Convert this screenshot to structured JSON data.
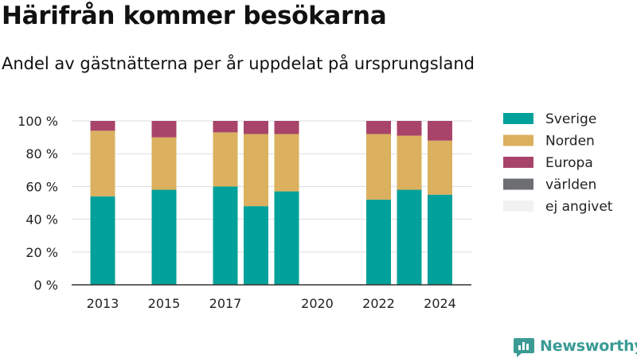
{
  "chart_data": {
    "type": "bar",
    "stacked": true,
    "title": "Härifrån kommer besökarna",
    "subtitle": "Andel av gästnätterna per år uppdelat på ursprungsland",
    "categories": [
      "2013",
      "2014",
      "2015",
      "2016",
      "2017",
      "2018",
      "2019",
      "2020",
      "2021",
      "2022",
      "2023",
      "2024"
    ],
    "tick_labels": [
      "2013",
      "2015",
      "2017",
      "2020",
      "2022",
      "2024"
    ],
    "y_ticks": [
      "0 %",
      "20 %",
      "40 %",
      "60 %",
      "80 %",
      "100 %"
    ],
    "ylim": [
      0,
      100
    ],
    "grid": true,
    "legend_position": "right",
    "series": [
      {
        "name": "Sverige",
        "color": "#00a19a",
        "values": [
          54,
          null,
          58,
          null,
          60,
          48,
          57,
          null,
          null,
          52,
          58,
          55
        ]
      },
      {
        "name": "Norden",
        "color": "#dbb05e",
        "values": [
          40,
          null,
          32,
          null,
          33,
          44,
          35,
          null,
          null,
          40,
          33,
          33
        ]
      },
      {
        "name": "Europa",
        "color": "#a8446a",
        "values": [
          6,
          null,
          10,
          null,
          7,
          8,
          8,
          null,
          null,
          8,
          9,
          12
        ]
      },
      {
        "name": "världen",
        "color": "#6d6e71",
        "values": [
          0,
          null,
          0,
          null,
          0,
          0,
          0,
          null,
          null,
          0,
          0,
          0
        ]
      },
      {
        "name": "ej angivet",
        "color": "#f2f2f2",
        "values": [
          0,
          null,
          0,
          null,
          0,
          0,
          0,
          null,
          null,
          0,
          0,
          0
        ]
      }
    ]
  },
  "brand": {
    "name": "Newsworthy",
    "color": "#3a9b95",
    "icon": "bar-chart-icon"
  }
}
